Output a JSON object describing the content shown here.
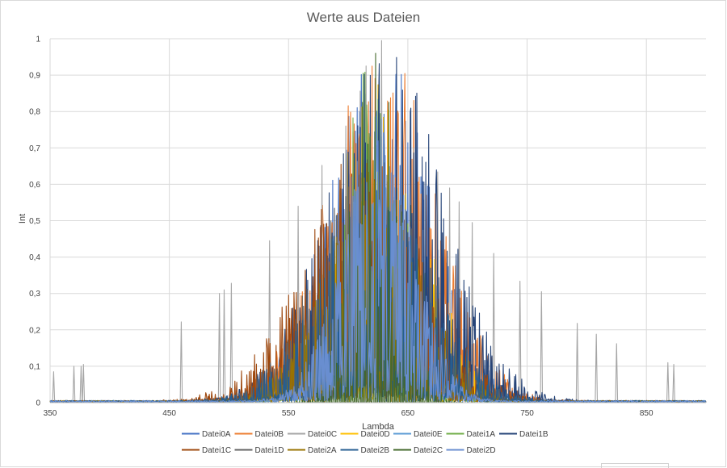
{
  "chart_data": {
    "type": "line",
    "title": "Werte aus Dateien",
    "xlabel": "Lambda",
    "ylabel": "Int",
    "xlim": [
      350,
      900
    ],
    "ylim": [
      0,
      1
    ],
    "x_ticks": [
      "350",
      "450",
      "550",
      "650",
      "750",
      "850"
    ],
    "y_ticks": [
      "0",
      "0,1",
      "0,2",
      "0,3",
      "0,4",
      "0,5",
      "0,6",
      "0,7",
      "0,8",
      "0,9",
      "1"
    ],
    "grid": "major",
    "legend_position": "bottom",
    "series": [
      {
        "name": "Datei0A",
        "color": "#4472C4",
        "center": 627,
        "width": 42,
        "peak": 0.98,
        "seed": 11,
        "density": 0.55
      },
      {
        "name": "Datei0B",
        "color": "#ED7D31",
        "center": 628,
        "width": 45,
        "peak": 1.0,
        "seed": 23,
        "density": 0.6
      },
      {
        "name": "Datei0C",
        "color": "#A5A5A5",
        "center": 620,
        "width": 95,
        "peak": 0.9,
        "seed": 37,
        "density": 0.12,
        "lines": [
          [
            353,
            0.085
          ],
          [
            370,
            0.1
          ],
          [
            376,
            0.1
          ],
          [
            378,
            0.105
          ],
          [
            460,
            0.222
          ],
          [
            492,
            0.3
          ],
          [
            496,
            0.31
          ],
          [
            502,
            0.328
          ],
          [
            534,
            0.445
          ],
          [
            558,
            0.54
          ],
          [
            578,
            0.652
          ],
          [
            598,
            0.76
          ],
          [
            610,
            0.856
          ],
          [
            615,
            0.925
          ],
          [
            628,
            0.995
          ],
          [
            645,
            0.78
          ],
          [
            655,
            0.7
          ],
          [
            675,
            0.634
          ],
          [
            685,
            0.59
          ],
          [
            693,
            0.552
          ],
          [
            704,
            0.495
          ],
          [
            722,
            0.41
          ],
          [
            744,
            0.334
          ],
          [
            762,
            0.305
          ],
          [
            792,
            0.218
          ],
          [
            808,
            0.188
          ],
          [
            825,
            0.162
          ],
          [
            868,
            0.11
          ],
          [
            873,
            0.105
          ]
        ]
      },
      {
        "name": "Datei0D",
        "color": "#FFC000",
        "center": 626,
        "width": 38,
        "peak": 0.88,
        "seed": 41,
        "density": 0.4
      },
      {
        "name": "Datei0E",
        "color": "#5B9BD5",
        "center": 624,
        "width": 28,
        "peak": 0.7,
        "seed": 53,
        "density": 0.9
      },
      {
        "name": "Datei1A",
        "color": "#70AD47",
        "center": 620,
        "width": 32,
        "peak": 0.95,
        "seed": 67,
        "density": 0.5
      },
      {
        "name": "Datei1B",
        "color": "#264478",
        "center": 632,
        "width": 48,
        "peak": 0.98,
        "seed": 71,
        "density": 0.45
      },
      {
        "name": "Datei1C",
        "color": "#9E480E",
        "center": 612,
        "width": 50,
        "peak": 0.7,
        "seed": 83,
        "density": 0.45
      },
      {
        "name": "Datei1D",
        "color": "#636363",
        "center": 618,
        "width": 44,
        "peak": 0.68,
        "seed": 97,
        "density": 0.35
      },
      {
        "name": "Datei2A",
        "color": "#997300",
        "center": 620,
        "width": 40,
        "peak": 0.66,
        "seed": 101,
        "density": 0.4
      },
      {
        "name": "Datei2B",
        "color": "#255E91",
        "center": 622,
        "width": 46,
        "peak": 0.62,
        "seed": 113,
        "density": 0.4
      },
      {
        "name": "Datei2C",
        "color": "#43682B",
        "center": 623,
        "width": 20,
        "peak": 0.96,
        "seed": 127,
        "density": 1.0,
        "comb": true
      },
      {
        "name": "Datei2D",
        "color": "#698ED0",
        "center": 624,
        "width": 30,
        "peak": 0.8,
        "seed": 139,
        "density": 0.8
      }
    ]
  }
}
